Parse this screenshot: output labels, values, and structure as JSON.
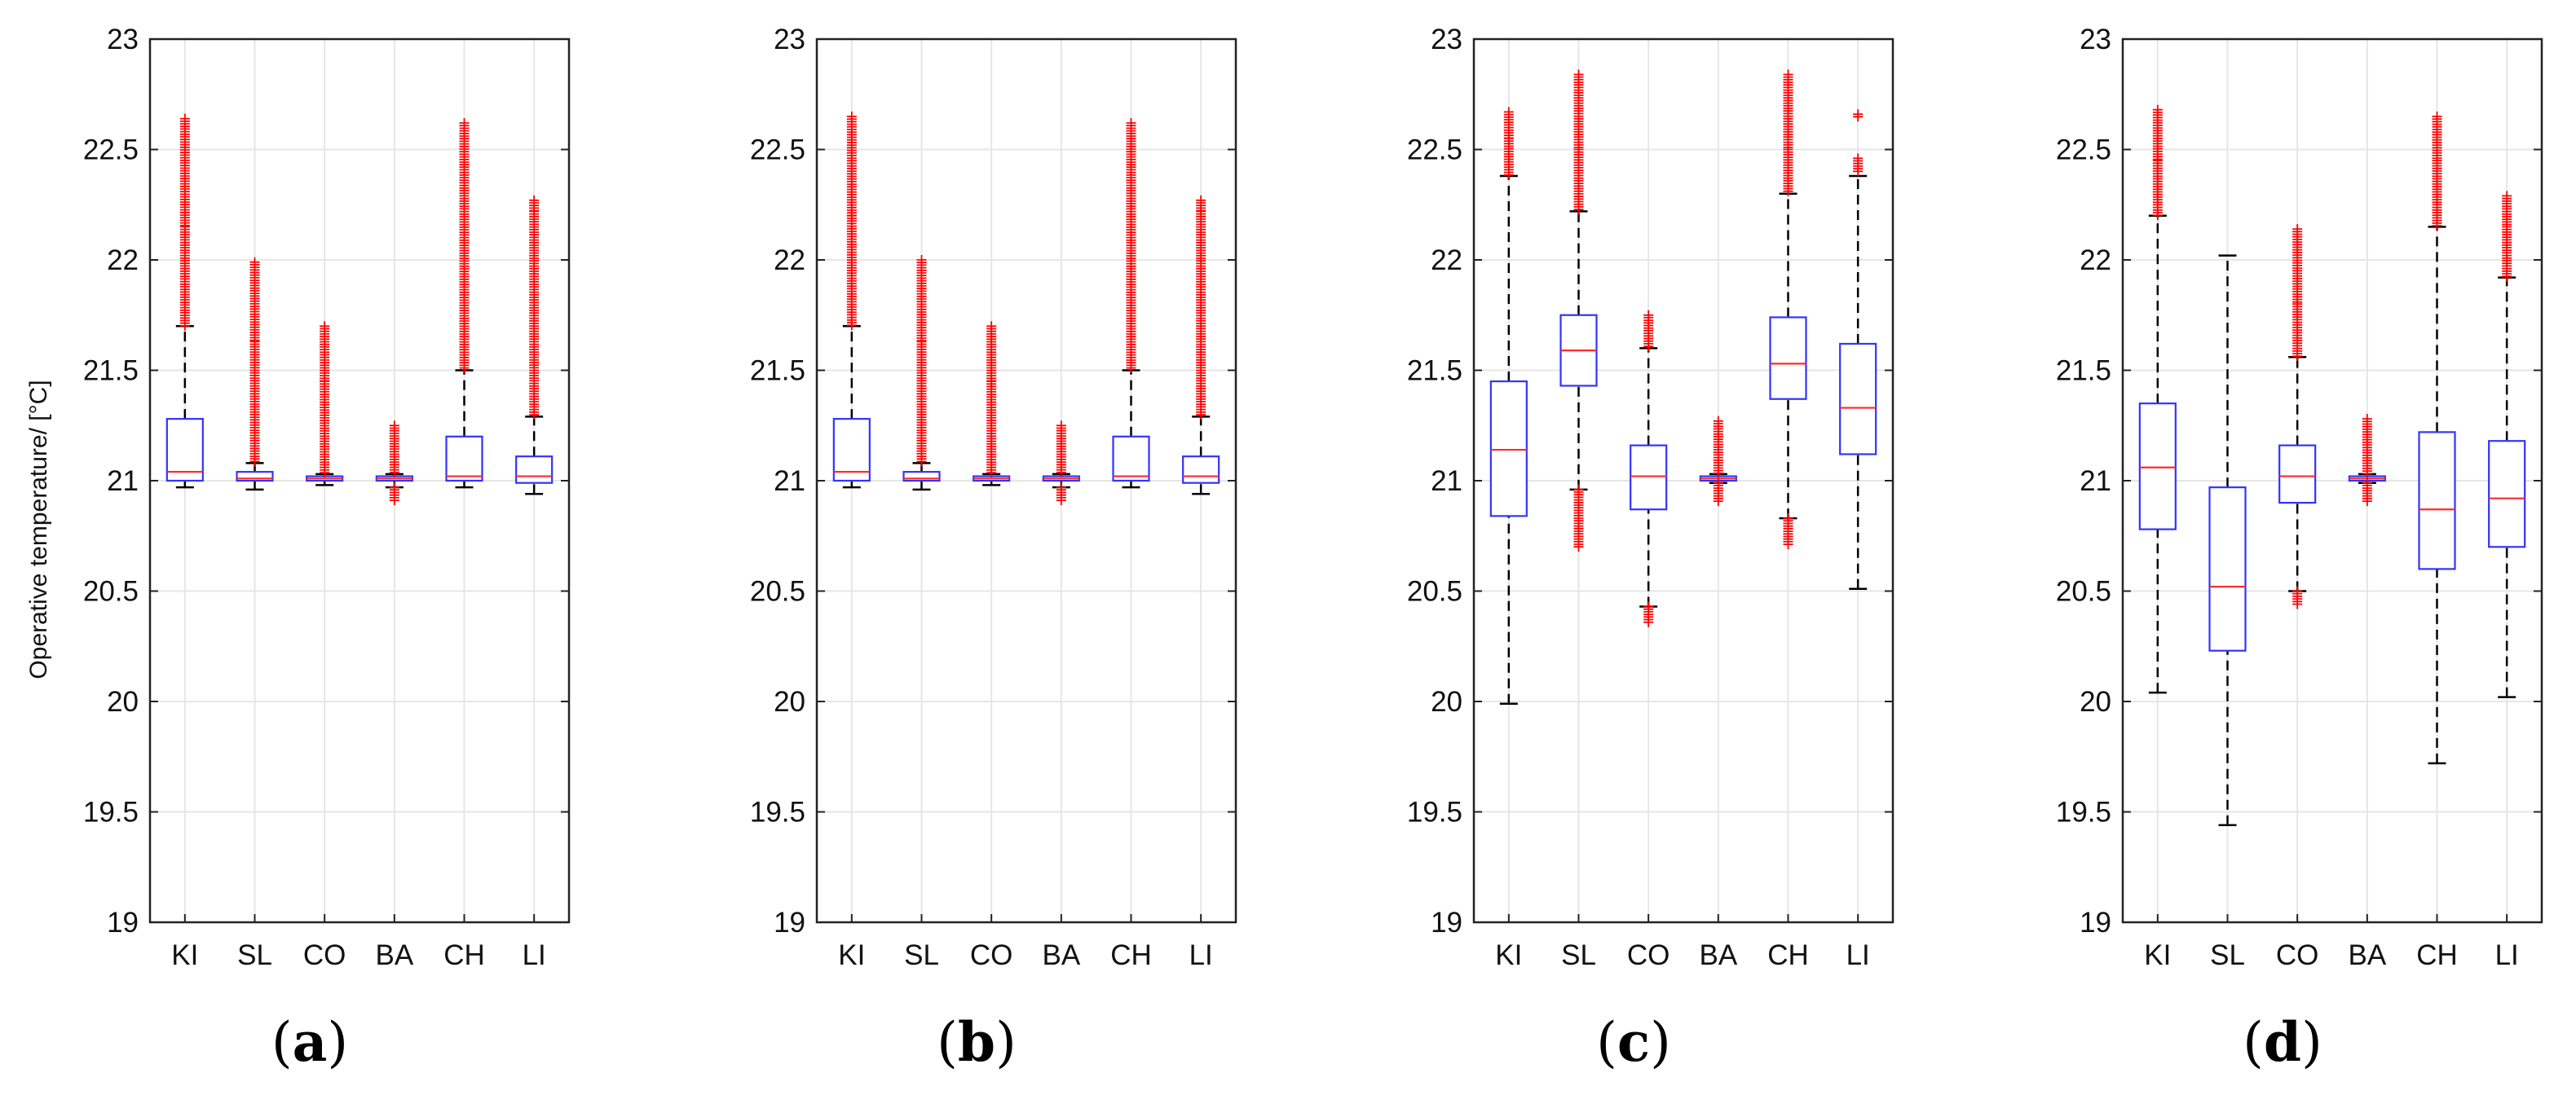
{
  "figure": {
    "y_axis_label": "Operative temperature/ [°C]",
    "panel_labels": [
      {
        "open": "(",
        "letter": "a",
        "close": ")"
      },
      {
        "open": "(",
        "letter": "b",
        "close": ")"
      },
      {
        "open": "(",
        "letter": "c",
        "close": ")"
      },
      {
        "open": "(",
        "letter": "d",
        "close": ")"
      }
    ]
  },
  "colors": {
    "box": "#3333ff",
    "median": "#ff2a2a",
    "outlier": "#ff0000",
    "whisker": "#000000",
    "grid": "#e6e6e6",
    "axis": "#222222"
  },
  "chart_data": [
    {
      "type": "boxplot",
      "panel": "a",
      "categories": [
        "KI",
        "SL",
        "CO",
        "BA",
        "CH",
        "LI"
      ],
      "ylim": [
        19,
        23
      ],
      "yticks": [
        19,
        19.5,
        20,
        20.5,
        21,
        21.5,
        22,
        22.5,
        23
      ],
      "ytick_labels": [
        "19",
        "19.5",
        "20",
        "20.5",
        "21",
        "21.5",
        "22",
        "22.5",
        "23"
      ],
      "grid": true,
      "boxes": [
        {
          "min": 20.97,
          "q1": 21.0,
          "median": 21.04,
          "q3": 21.28,
          "max": 21.7,
          "outliers": [
            [
              21.7,
              22.15
            ],
            [
              22.15,
              22.64
            ]
          ]
        },
        {
          "min": 20.96,
          "q1": 21.0,
          "median": 21.01,
          "q3": 21.04,
          "max": 21.08,
          "outliers": [
            [
              21.08,
              21.63
            ],
            [
              21.63,
              21.99
            ]
          ]
        },
        {
          "min": 20.98,
          "q1": 21.0,
          "median": 21.01,
          "q3": 21.02,
          "max": 21.03,
          "outliers": [
            [
              21.03,
              21.45
            ],
            [
              21.45,
              21.7
            ]
          ]
        },
        {
          "min": 20.97,
          "q1": 21.0,
          "median": 21.01,
          "q3": 21.02,
          "max": 21.03,
          "outliers": [
            [
              20.91,
              20.97
            ],
            [
              21.03,
              21.25
            ]
          ]
        },
        {
          "min": 20.97,
          "q1": 21.0,
          "median": 21.02,
          "q3": 21.2,
          "max": 21.5,
          "outliers": [
            [
              21.5,
              22.42
            ],
            [
              22.42,
              22.62
            ]
          ]
        },
        {
          "min": 20.94,
          "q1": 20.99,
          "median": 21.02,
          "q3": 21.11,
          "max": 21.29,
          "outliers": [
            [
              21.29,
              22.22
            ],
            [
              22.22,
              22.27
            ]
          ]
        }
      ]
    },
    {
      "type": "boxplot",
      "panel": "b",
      "categories": [
        "KI",
        "SL",
        "CO",
        "BA",
        "CH",
        "LI"
      ],
      "ylim": [
        19,
        23
      ],
      "yticks": [
        19,
        19.5,
        20,
        20.5,
        21,
        21.5,
        22,
        22.5,
        23
      ],
      "ytick_labels": [
        "19",
        "19.5",
        "20",
        "20.5",
        "21",
        "21.5",
        "22",
        "22.5",
        "23"
      ],
      "grid": true,
      "boxes": [
        {
          "min": 20.97,
          "q1": 21.0,
          "median": 21.04,
          "q3": 21.28,
          "max": 21.7,
          "outliers": [
            [
              21.7,
              22.2
            ],
            [
              22.2,
              22.65
            ]
          ]
        },
        {
          "min": 20.96,
          "q1": 21.0,
          "median": 21.01,
          "q3": 21.04,
          "max": 21.08,
          "outliers": [
            [
              21.08,
              21.63
            ],
            [
              21.63,
              22.0
            ]
          ]
        },
        {
          "min": 20.98,
          "q1": 21.0,
          "median": 21.01,
          "q3": 21.02,
          "max": 21.03,
          "outliers": [
            [
              21.03,
              21.45
            ],
            [
              21.45,
              21.7
            ]
          ]
        },
        {
          "min": 20.97,
          "q1": 21.0,
          "median": 21.01,
          "q3": 21.02,
          "max": 21.03,
          "outliers": [
            [
              20.91,
              20.97
            ],
            [
              21.03,
              21.25
            ]
          ]
        },
        {
          "min": 20.97,
          "q1": 21.0,
          "median": 21.02,
          "q3": 21.2,
          "max": 21.5,
          "outliers": [
            [
              21.5,
              22.42
            ],
            [
              22.42,
              22.62
            ]
          ]
        },
        {
          "min": 20.94,
          "q1": 20.99,
          "median": 21.02,
          "q3": 21.11,
          "max": 21.29,
          "outliers": [
            [
              21.29,
              22.22
            ],
            [
              22.22,
              22.27
            ]
          ]
        }
      ]
    },
    {
      "type": "boxplot",
      "panel": "c",
      "categories": [
        "KI",
        "SL",
        "CO",
        "BA",
        "CH",
        "LI"
      ],
      "ylim": [
        19,
        23
      ],
      "yticks": [
        19,
        19.5,
        20,
        20.5,
        21,
        21.5,
        22,
        22.5,
        23
      ],
      "ytick_labels": [
        "19",
        "19.5",
        "20",
        "20.5",
        "21",
        "21.5",
        "22",
        "22.5",
        "23"
      ],
      "grid": true,
      "boxes": [
        {
          "min": 19.99,
          "q1": 20.84,
          "median": 21.14,
          "q3": 21.45,
          "max": 22.38,
          "outliers": [
            [
              22.38,
              22.55
            ],
            [
              22.55,
              22.67
            ]
          ]
        },
        {
          "min": 20.96,
          "q1": 21.43,
          "median": 21.59,
          "q3": 21.75,
          "max": 22.22,
          "outliers": [
            [
              20.7,
              20.96
            ],
            [
              22.22,
              22.5
            ],
            [
              22.5,
              22.84
            ]
          ]
        },
        {
          "min": 20.43,
          "q1": 20.87,
          "median": 21.02,
          "q3": 21.16,
          "max": 21.6,
          "outliers": [
            [
              20.35,
              20.43
            ],
            [
              21.6,
              21.75
            ]
          ]
        },
        {
          "min": 20.99,
          "q1": 21.0,
          "median": 21.01,
          "q3": 21.02,
          "max": 21.03,
          "outliers": [
            [
              20.9,
              20.99
            ],
            [
              21.03,
              21.27
            ]
          ]
        },
        {
          "min": 20.83,
          "q1": 21.37,
          "median": 21.53,
          "q3": 21.74,
          "max": 22.3,
          "outliers": [
            [
              20.71,
              20.83
            ],
            [
              22.3,
              22.5
            ],
            [
              22.5,
              22.84
            ]
          ]
        },
        {
          "min": 20.51,
          "q1": 21.12,
          "median": 21.33,
          "q3": 21.62,
          "max": 22.38,
          "outliers": [
            [
              22.4,
              22.46
            ],
            [
              22.64,
              22.66
            ]
          ]
        }
      ]
    },
    {
      "type": "boxplot",
      "panel": "d",
      "categories": [
        "KI",
        "SL",
        "CO",
        "BA",
        "CH",
        "LI"
      ],
      "ylim": [
        19,
        23
      ],
      "yticks": [
        19,
        19.5,
        20,
        20.5,
        21,
        21.5,
        22,
        22.5,
        23
      ],
      "ytick_labels": [
        "19",
        "19.5",
        "20",
        "20.5",
        "21",
        "21.5",
        "22",
        "22.5",
        "23"
      ],
      "grid": true,
      "boxes": [
        {
          "min": 20.04,
          "q1": 20.78,
          "median": 21.06,
          "q3": 21.35,
          "max": 22.2,
          "outliers": [
            [
              22.2,
              22.45
            ],
            [
              22.45,
              22.68
            ]
          ]
        },
        {
          "min": 19.44,
          "q1": 20.23,
          "median": 20.52,
          "q3": 20.97,
          "max": 22.02,
          "outliers": []
        },
        {
          "min": 20.5,
          "q1": 20.9,
          "median": 21.02,
          "q3": 21.16,
          "max": 21.56,
          "outliers": [
            [
              20.43,
              20.5
            ],
            [
              21.56,
              21.8
            ],
            [
              21.8,
              22.14
            ]
          ]
        },
        {
          "min": 20.99,
          "q1": 21.0,
          "median": 21.01,
          "q3": 21.02,
          "max": 21.03,
          "outliers": [
            [
              20.9,
              20.99
            ],
            [
              21.03,
              21.28
            ]
          ]
        },
        {
          "min": 19.72,
          "q1": 20.6,
          "median": 20.87,
          "q3": 21.22,
          "max": 22.15,
          "outliers": [
            [
              22.15,
              22.45
            ],
            [
              22.45,
              22.65
            ]
          ]
        },
        {
          "min": 20.02,
          "q1": 20.7,
          "median": 20.92,
          "q3": 21.18,
          "max": 21.92,
          "outliers": [
            [
              21.92,
              22.15
            ],
            [
              22.15,
              22.29
            ]
          ]
        }
      ]
    }
  ]
}
